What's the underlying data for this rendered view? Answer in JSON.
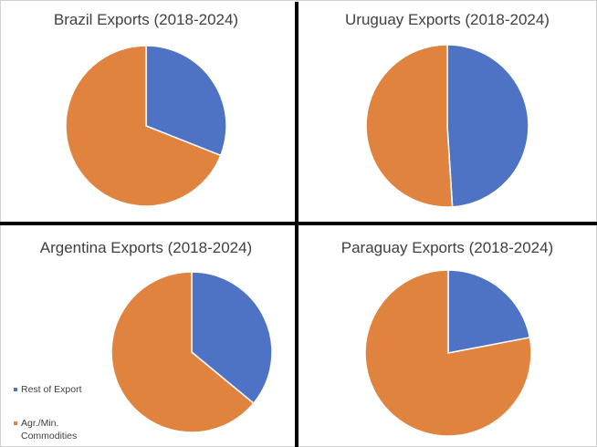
{
  "colors": {
    "rest": "#4f73c4",
    "agr": "#e0833f",
    "divider": "#000000"
  },
  "legend": {
    "items": [
      {
        "label": "Rest of Export",
        "color": "#4f73c4"
      },
      {
        "label": "Agr./Min.",
        "label2": "Commodities",
        "color": "#e0833f"
      }
    ]
  },
  "chart_data": [
    {
      "type": "pie",
      "title": "Brazil Exports (2018-2024)",
      "categories": [
        "Rest of Export",
        "Agr./Min. Commodities"
      ],
      "values": [
        31,
        69
      ]
    },
    {
      "type": "pie",
      "title": "Uruguay Exports (2018-2024)",
      "categories": [
        "Rest of Export",
        "Agr./Min. Commodities"
      ],
      "values": [
        49,
        51
      ]
    },
    {
      "type": "pie",
      "title": "Argentina Exports (2018-2024)",
      "categories": [
        "Rest of Export",
        "Agr./Min. Commodities"
      ],
      "values": [
        36,
        64
      ]
    },
    {
      "type": "pie",
      "title": "Paraguay Exports (2018-2024)",
      "categories": [
        "Rest of Export",
        "Agr./Min. Commodities"
      ],
      "values": [
        22,
        78
      ]
    }
  ]
}
